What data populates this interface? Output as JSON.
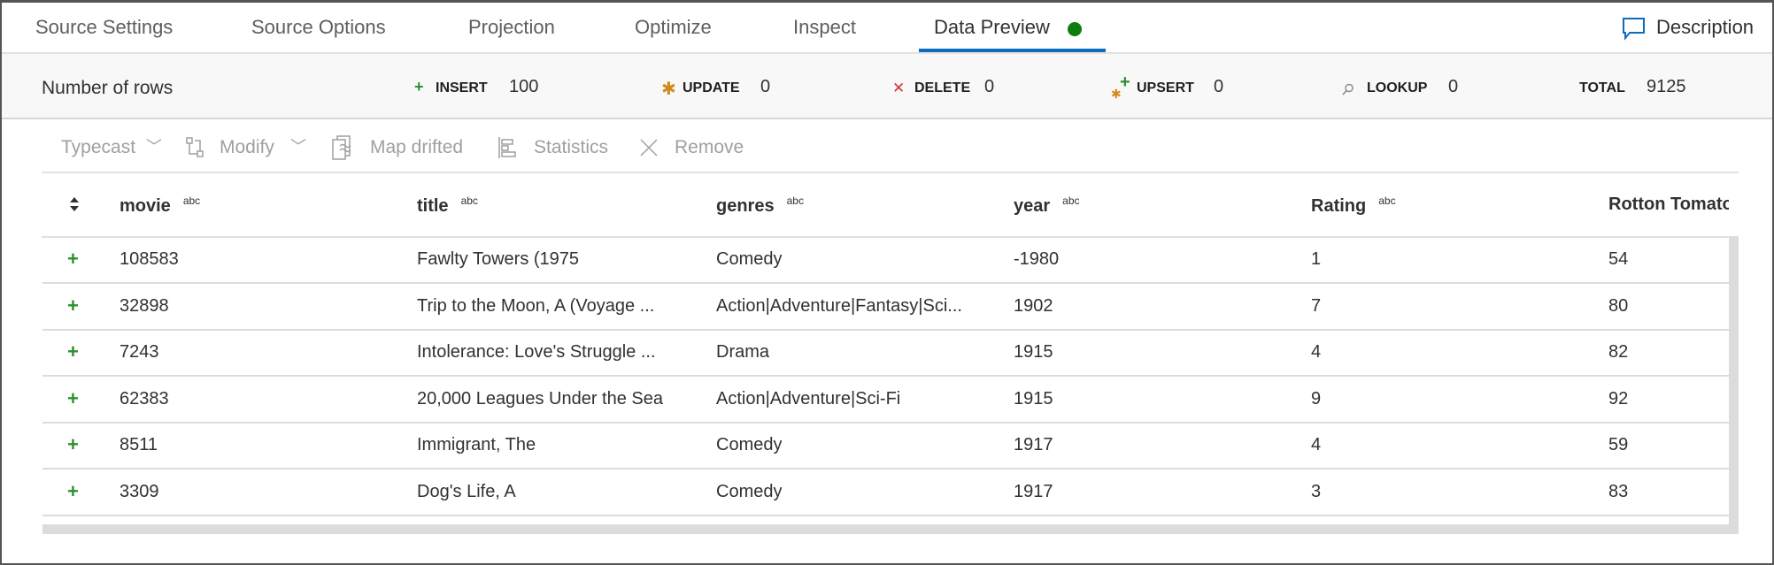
{
  "tabs": [
    {
      "label": "Source Settings",
      "active": false
    },
    {
      "label": "Source Options",
      "active": false
    },
    {
      "label": "Projection",
      "active": false
    },
    {
      "label": "Optimize",
      "active": false
    },
    {
      "label": "Inspect",
      "active": false
    },
    {
      "label": "Data Preview",
      "active": true,
      "status": "green-dot"
    }
  ],
  "description_label": "Description",
  "summary": {
    "title": "Number of rows",
    "insert": {
      "label": "INSERT",
      "value": "100",
      "icon": "plus-icon",
      "color": "#2f8f2f"
    },
    "update": {
      "label": "UPDATE",
      "value": "0",
      "icon": "asterisk-icon",
      "color": "#d08a1e"
    },
    "delete": {
      "label": "DELETE",
      "value": "0",
      "icon": "x-icon",
      "color": "#d13438"
    },
    "upsert": {
      "label": "UPSERT",
      "value": "0",
      "icon": "plus-asterisk-icon"
    },
    "lookup": {
      "label": "LOOKUP",
      "value": "0",
      "icon": "search-icon"
    },
    "total": {
      "label": "TOTAL",
      "value": "9125"
    }
  },
  "toolbar": {
    "typecast": "Typecast",
    "modify": "Modify",
    "map_drifted": "Map drifted",
    "statistics": "Statistics",
    "remove": "Remove"
  },
  "table": {
    "type_badge": "abc",
    "columns": [
      "movie",
      "title",
      "genres",
      "year",
      "Rating",
      "Rotton Tomato"
    ],
    "rows": [
      [
        "108583",
        "Fawlty Towers (1975",
        "Comedy",
        "-1980",
        "1",
        "54"
      ],
      [
        "32898",
        "Trip to the Moon, A (Voyage ...",
        "Action|Adventure|Fantasy|Sci...",
        "1902",
        "7",
        "80"
      ],
      [
        "7243",
        "Intolerance: Love's Struggle ...",
        "Drama",
        "1915",
        "4",
        "82"
      ],
      [
        "62383",
        "20,000 Leagues Under the Sea",
        "Action|Adventure|Sci-Fi",
        "1915",
        "9",
        "92"
      ],
      [
        "8511",
        "Immigrant, The",
        "Comedy",
        "1917",
        "4",
        "59"
      ],
      [
        "3309",
        "Dog's Life, A",
        "Comedy",
        "1917",
        "3",
        "83"
      ]
    ]
  }
}
